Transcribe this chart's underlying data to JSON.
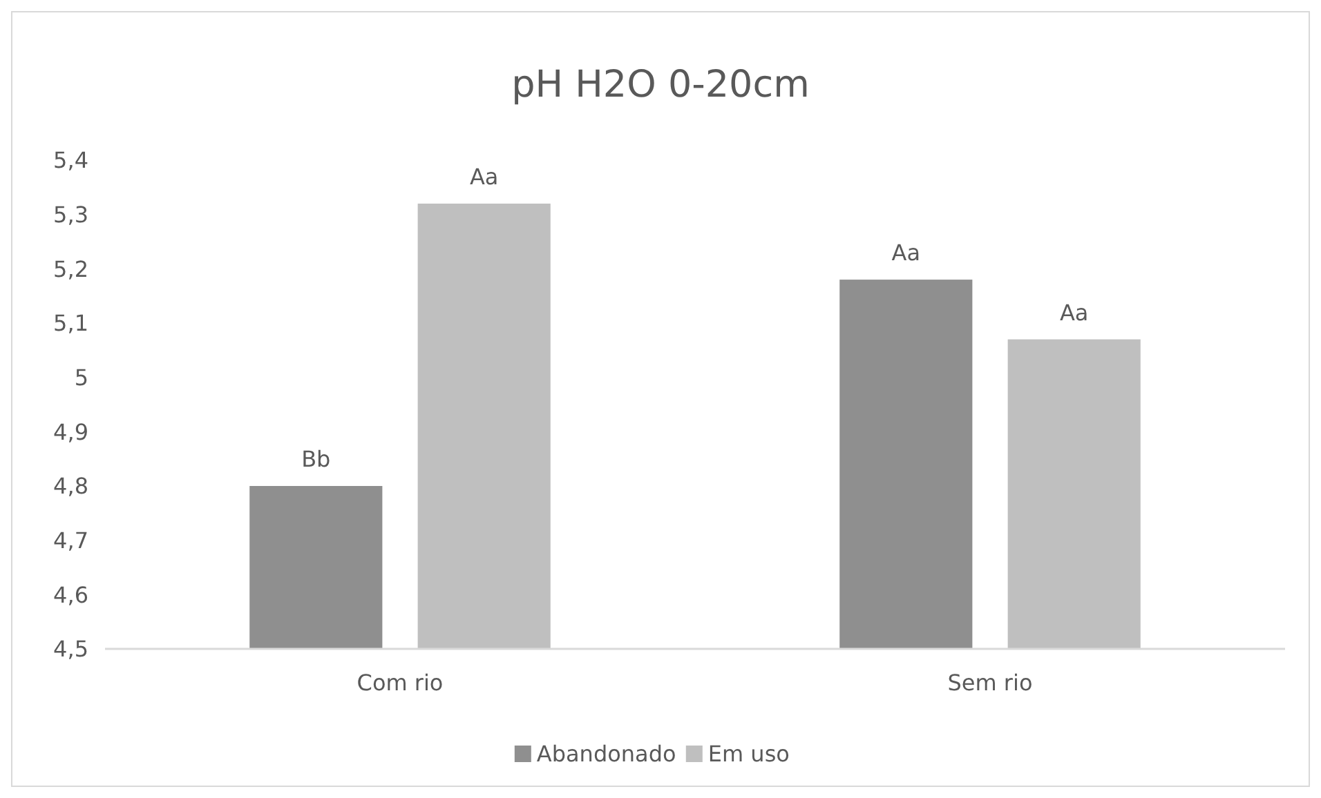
{
  "chart_data": {
    "type": "bar",
    "title": "pH H2O 0-20cm",
    "categories": [
      "Com rio",
      "Sem rio"
    ],
    "series": [
      {
        "name": "Abandonado",
        "color": "#8f8f8f",
        "values": [
          4.8,
          5.18
        ],
        "value_labels": [
          "Bb",
          "Aa"
        ]
      },
      {
        "name": "Em uso",
        "color": "#bfbfbf",
        "values": [
          5.32,
          5.07
        ],
        "value_labels": [
          "Aa",
          "Aa"
        ]
      }
    ],
    "ylim": [
      4.5,
      5.4
    ],
    "yticks": [
      {
        "value": 4.5,
        "label": "4,5"
      },
      {
        "value": 4.6,
        "label": "4,6"
      },
      {
        "value": 4.7,
        "label": "4,7"
      },
      {
        "value": 4.8,
        "label": "4,8"
      },
      {
        "value": 4.9,
        "label": "4,9"
      },
      5,
      {
        "value": 5.1,
        "label": "5,1"
      },
      {
        "value": 5.2,
        "label": "5,2"
      },
      {
        "value": 5.3,
        "label": "5,3"
      },
      {
        "value": 5.4,
        "label": "5,4"
      }
    ],
    "legend": "bottom"
  }
}
